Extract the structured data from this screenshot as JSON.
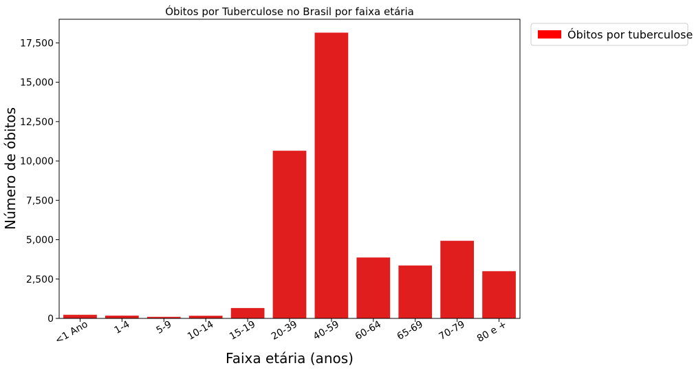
{
  "chart_data": {
    "type": "bar",
    "title": "Óbitos por Tuberculose no Brasil por faixa etária",
    "xlabel": "Faixa etária (anos)",
    "ylabel": "Número de óbitos",
    "categories": [
      "<1 Ano",
      "1-4",
      "5-9",
      "10-14",
      "15-19",
      "20-39",
      "40-59",
      "60-64",
      "65-69",
      "70-79",
      "80 e +"
    ],
    "series": [
      {
        "name": "Óbitos por tuberculose",
        "values": [
          230,
          180,
          100,
          170,
          660,
          10650,
          18150,
          3870,
          3360,
          4930,
          3000
        ],
        "color": "#e01e1e"
      }
    ],
    "yticks": [
      0,
      2500,
      5000,
      7500,
      10000,
      12500,
      15000,
      17500
    ],
    "ytick_labels": [
      "0",
      "2,500",
      "5,000",
      "7,500",
      "10,000",
      "12,500",
      "15,000",
      "17,500"
    ],
    "ylim": [
      0,
      19000
    ],
    "grid": false,
    "legend": {
      "placement": "outside-top-right",
      "label": "Óbitos por tuberculose",
      "swatch_color": "#ff0000"
    }
  }
}
